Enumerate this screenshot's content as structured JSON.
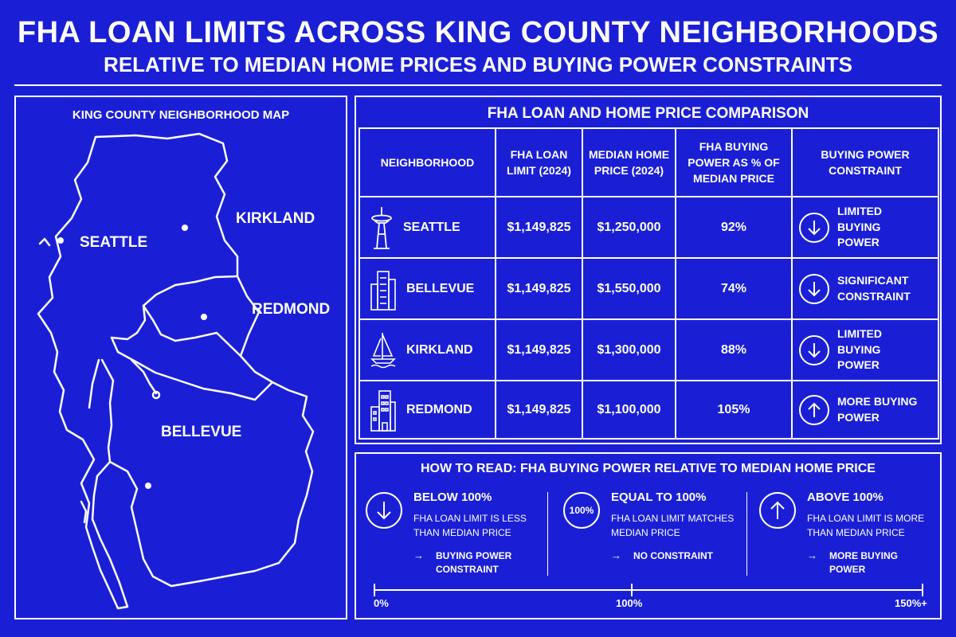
{
  "title": "FHA LOAN LIMITS ACROSS KING COUNTY NEIGHBORHOODS",
  "subtitle": "RELATIVE TO MEDIAN HOME PRICES AND BUYING POWER CONSTRAINTS",
  "map": {
    "title": "KING COUNTY NEIGHBORHOOD MAP",
    "labels": {
      "seattle": "SEATTLE",
      "kirkland": "KIRKLAND",
      "redmond": "REDMOND",
      "bellevue": "BELLEVUE"
    }
  },
  "table": {
    "title": "FHA LOAN AND HOME PRICE COMPARISON",
    "headers": {
      "neighborhood": "NEIGHBORHOOD",
      "fha_limit": "FHA LOAN LIMIT (2024)",
      "median_price": "MEDIAN HOME PRICE (2024)",
      "buying_power": "FHA BUYING POWER AS % OF MEDIAN PRICE",
      "constraint": "BUYING POWER CONSTRAINT"
    },
    "rows": [
      {
        "name": "SEATTLE",
        "icon": "space-needle-icon",
        "fha": "$1,149,825",
        "median": "$1,250,000",
        "pct": "92%",
        "direction": "down",
        "constraint": "LIMITED BUYING POWER"
      },
      {
        "name": "BELLEVUE",
        "icon": "skyscraper-icon",
        "fha": "$1,149,825",
        "median": "$1,550,000",
        "pct": "74%",
        "direction": "down",
        "constraint": "SIGNIFICANT CONSTRAINT"
      },
      {
        "name": "KIRKLAND",
        "icon": "sailboat-icon",
        "fha": "$1,149,825",
        "median": "$1,300,000",
        "pct": "88%",
        "direction": "down",
        "constraint": "LIMITED BUYING POWER"
      },
      {
        "name": "REDMOND",
        "icon": "office-buildings-icon",
        "fha": "$1,149,825",
        "median": "$1,100,000",
        "pct": "105%",
        "direction": "up",
        "constraint": "MORE BUYING POWER"
      }
    ]
  },
  "legend": {
    "title": "HOW TO READ: FHA BUYING POWER RELATIVE TO MEDIAN HOME PRICE",
    "items": [
      {
        "icon": "arrow-down-icon",
        "head": "BELOW 100%",
        "desc": "FHA LOAN LIMIT IS LESS THAN MEDIAN PRICE",
        "result": "BUYING POWER CONSTRAINT"
      },
      {
        "icon": "100-percent-badge",
        "badge": "100%",
        "head": "EQUAL TO 100%",
        "desc": "FHA LOAN LIMIT MATCHES MEDIAN PRICE",
        "result": "NO CONSTRAINT"
      },
      {
        "icon": "arrow-up-icon",
        "head": "ABOVE 100%",
        "desc": "FHA LOAN LIMIT IS MORE THAN MEDIAN PRICE",
        "result": "MORE BUYING POWER"
      }
    ],
    "arrow_glyph": "→",
    "scale": {
      "min": "0%",
      "mid": "100%",
      "max": "150%+"
    }
  },
  "colors": {
    "background": "#1a1fd6",
    "foreground": "#ffffff"
  }
}
